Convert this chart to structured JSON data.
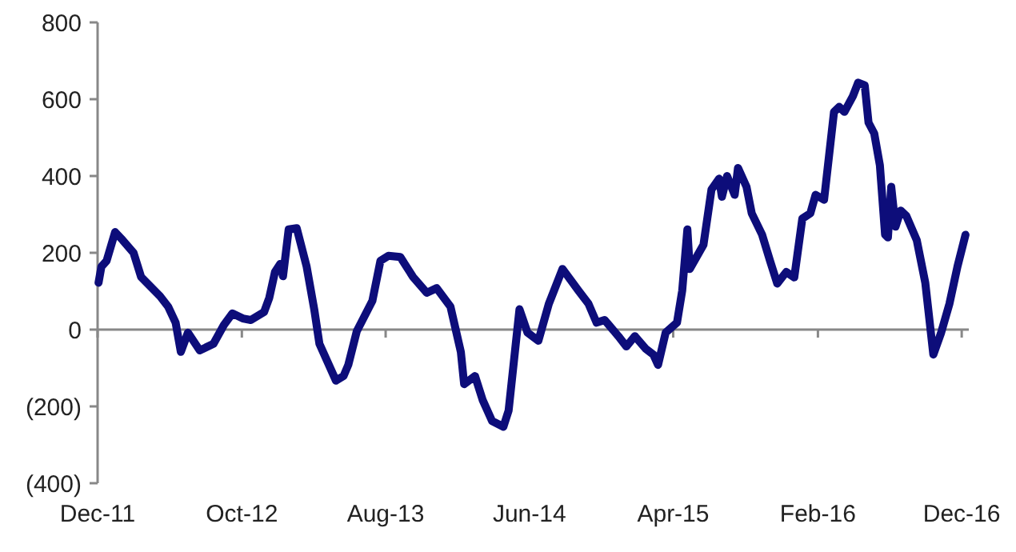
{
  "chart_data": {
    "type": "line",
    "x": [
      "2011-12-03",
      "2011-12-09",
      "2011-12-20",
      "2012-01-07",
      "2012-01-23",
      "2012-02-15",
      "2012-03-02",
      "2012-04-11",
      "2012-04-28",
      "2012-05-14",
      "2012-05-25",
      "2012-06-09",
      "2012-07-04",
      "2012-08-02",
      "2012-08-24",
      "2012-09-11",
      "2012-10-03",
      "2012-10-20",
      "2012-11-17",
      "2012-11-28",
      "2012-12-10",
      "2012-12-21",
      "2012-12-27",
      "2013-01-08",
      "2013-01-25",
      "2013-02-15",
      "2013-03-03",
      "2013-03-14",
      "2013-04-18",
      "2013-05-04",
      "2013-05-14",
      "2013-06-01",
      "2013-07-04",
      "2013-07-21",
      "2013-08-07",
      "2013-09-01",
      "2013-09-28",
      "2013-10-27",
      "2013-11-17",
      "2013-12-16",
      "2014-01-07",
      "2014-01-14",
      "2014-02-06",
      "2014-02-22",
      "2014-03-14",
      "2014-04-07",
      "2014-04-18",
      "2014-05-11",
      "2014-05-28",
      "2014-06-20",
      "2014-07-12",
      "2014-08-10",
      "2014-09-13",
      "2014-10-04",
      "2014-10-21",
      "2014-11-07",
      "2014-12-06",
      "2014-12-23",
      "2015-01-10",
      "2015-02-02",
      "2015-02-18",
      "2015-02-28",
      "2015-03-16",
      "2015-04-09",
      "2015-04-20",
      "2015-05-01",
      "2015-05-06",
      "2015-06-04",
      "2015-06-21",
      "2015-07-07",
      "2015-07-13",
      "2015-07-24",
      "2015-08-09",
      "2015-08-16",
      "2015-09-03",
      "2015-09-14",
      "2015-10-06",
      "2015-10-23",
      "2015-11-07",
      "2015-11-26",
      "2015-12-13",
      "2015-12-30",
      "2016-01-16",
      "2016-01-27",
      "2016-02-14",
      "2016-03-06",
      "2016-03-17",
      "2016-03-28",
      "2016-04-15",
      "2016-04-26",
      "2016-05-10",
      "2016-05-18",
      "2016-05-30",
      "2016-06-11",
      "2016-06-22",
      "2016-06-28",
      "2016-07-05",
      "2016-07-14",
      "2016-07-25",
      "2016-08-06",
      "2016-08-28",
      "2016-09-15",
      "2016-10-02",
      "2016-10-18",
      "2016-11-05",
      "2016-11-22",
      "2016-12-09"
    ],
    "series": [
      {
        "color": "#0d0d7a",
        "values": [
          122,
          164,
          179,
          254,
          233,
          200,
          137,
          87,
          60,
          18,
          -58,
          -8,
          -54,
          -37,
          12,
          42,
          29,
          25,
          46,
          83,
          150,
          171,
          139,
          261,
          264,
          164,
          53,
          -37,
          -133,
          -121,
          -92,
          -4,
          75,
          179,
          192,
          189,
          137,
          96,
          108,
          60,
          -58,
          -142,
          -121,
          -183,
          -238,
          -253,
          -211,
          53,
          -8,
          -29,
          67,
          158,
          101,
          67,
          18,
          25,
          -17,
          -44,
          -17,
          -50,
          -65,
          -92,
          -8,
          18,
          101,
          261,
          158,
          221,
          365,
          393,
          346,
          400,
          351,
          421,
          372,
          303,
          247,
          178,
          120,
          150,
          136,
          289,
          303,
          351,
          338,
          567,
          580,
          567,
          608,
          643,
          636,
          539,
          511,
          428,
          247,
          240,
          372,
          268,
          310,
          296,
          233,
          122,
          -65,
          -10,
          67,
          164,
          247
        ]
      }
    ],
    "xlim": [
      "2011-12-01",
      "2016-12-16"
    ],
    "xticks": [
      {
        "value": "2011-12-01",
        "label": "Dec-11"
      },
      {
        "value": "2012-10-01",
        "label": "Oct-12"
      },
      {
        "value": "2013-08-01",
        "label": "Aug-13"
      },
      {
        "value": "2014-06-01",
        "label": "Jun-14"
      },
      {
        "value": "2015-04-01",
        "label": "Apr-15"
      },
      {
        "value": "2016-02-01",
        "label": "Feb-16"
      },
      {
        "value": "2016-12-01",
        "label": "Dec-16"
      }
    ],
    "ylim": [
      -400,
      800
    ],
    "yticks": [
      {
        "value": -400,
        "label": "(400)"
      },
      {
        "value": -200,
        "label": "(200)"
      },
      0,
      200,
      400,
      600,
      800
    ],
    "marker": "none",
    "line_style": "solid"
  }
}
